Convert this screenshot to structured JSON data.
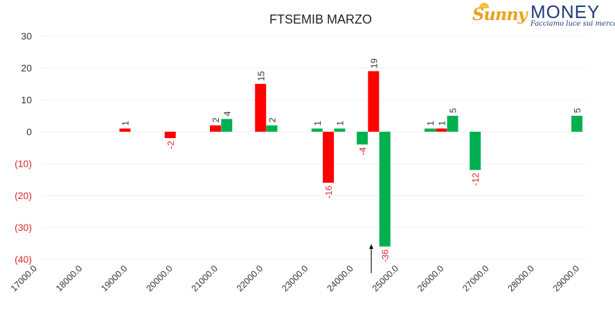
{
  "brand": {
    "name_part1": "Sunny",
    "name_part2": "MONEY",
    "tagline": "Facciamo luce sui mercati",
    "colors": {
      "sunny": "#e9a21d",
      "money": "#1f3a78"
    }
  },
  "chart_data": {
    "type": "bar",
    "title": "FTSEMIB MARZO",
    "xlabel": "",
    "ylabel": "",
    "ylim": [
      -40,
      30
    ],
    "y_ticks": [
      {
        "value": 30,
        "label": "30"
      },
      {
        "value": 20,
        "label": "20"
      },
      {
        "value": 10,
        "label": "10"
      },
      {
        "value": 0,
        "label": "0"
      },
      {
        "value": -10,
        "label": "(10)"
      },
      {
        "value": -20,
        "label": "(20)"
      },
      {
        "value": -30,
        "label": "(30)"
      },
      {
        "value": -40,
        "label": "(40)"
      }
    ],
    "x_ticks": [
      "17000.0",
      "18000.0",
      "19000.0",
      "20000.0",
      "21000.0",
      "22000.0",
      "23000.0",
      "24000.0",
      "25000.0",
      "26000.0",
      "27000.0",
      "28000.0",
      "29000.0"
    ],
    "grid": true,
    "series": [
      {
        "color": "#ff0000",
        "points": [
          {
            "strike": 19000,
            "value": 1,
            "label": "1"
          },
          {
            "strike": 20000,
            "value": -2,
            "label": "-2"
          },
          {
            "strike": 21000,
            "value": 2,
            "label": "2"
          },
          {
            "strike": 22000,
            "value": 15,
            "label": "15"
          },
          {
            "strike": 23500,
            "value": -16,
            "label": "-16"
          },
          {
            "strike": 24500,
            "value": 19,
            "label": "19"
          },
          {
            "strike": 26000,
            "value": 1,
            "label": "1"
          }
        ]
      },
      {
        "color": "#00b050",
        "points": [
          {
            "strike": 21250,
            "value": 4,
            "label": "4"
          },
          {
            "strike": 22250,
            "value": 2,
            "label": "2"
          },
          {
            "strike": 23250,
            "value": 1,
            "label": "1"
          },
          {
            "strike": 23750,
            "value": 1,
            "label": "1"
          },
          {
            "strike": 24250,
            "value": -4,
            "label": "-4"
          },
          {
            "strike": 24750,
            "value": -36,
            "label": "-36"
          },
          {
            "strike": 25750,
            "value": 1,
            "label": "1"
          },
          {
            "strike": 26250,
            "value": 5,
            "label": "5"
          },
          {
            "strike": 26750,
            "value": -12,
            "label": "-12"
          },
          {
            "strike": 29000,
            "value": 5,
            "label": "5"
          }
        ]
      }
    ],
    "annotations": [
      {
        "type": "arrow-up",
        "strike": 24450,
        "value": -40
      }
    ],
    "label_colors": {
      "positive": "#333333",
      "negative": "#d9262c"
    }
  }
}
